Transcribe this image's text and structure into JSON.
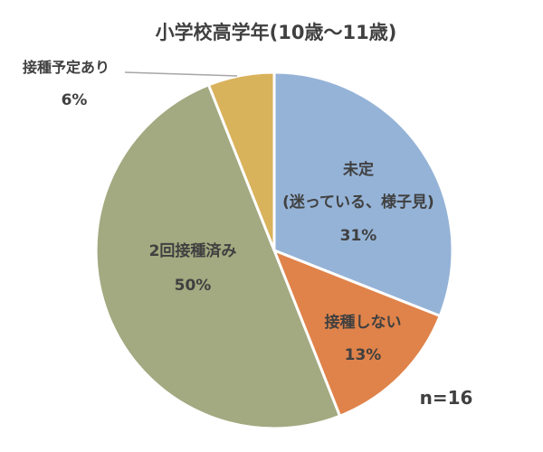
{
  "chart_data": {
    "type": "pie",
    "title": "小学校高学年(10歳～11歳)",
    "note": "n=16",
    "slices": [
      {
        "label_lines": [
          "未定",
          "(迷っている、様子見)"
        ],
        "value": 31,
        "value_label": "31%",
        "color": "#95b3d7"
      },
      {
        "label_lines": [
          "接種しない"
        ],
        "value": 13,
        "value_label": "13%",
        "color": "#e0834a"
      },
      {
        "label_lines": [
          "2回接種済み"
        ],
        "value": 50,
        "value_label": "50%",
        "color": "#a3a980"
      },
      {
        "label_lines": [
          "接種予定あり"
        ],
        "value": 6,
        "value_label": "6%",
        "color": "#d9b25c"
      }
    ]
  }
}
